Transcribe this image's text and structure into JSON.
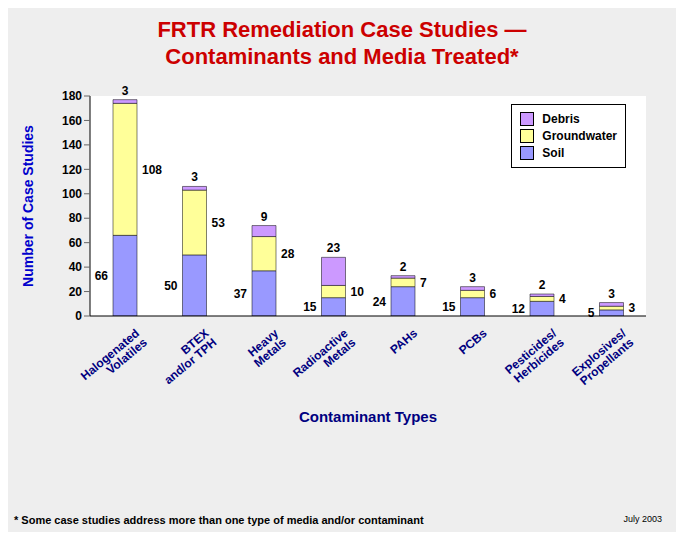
{
  "chart_data": {
    "type": "bar",
    "title": "FRTR Remediation Case Studies — Contaminants and Media Treated*",
    "x_label": "Contaminant Types",
    "y_label": "Number of Case Studies",
    "footnote": "* Some case studies address more than one type of media and/or contaminant",
    "date": "July 2003",
    "categories": [
      "Halogenated Volatiles",
      "BTEX and/or TPH",
      "Heavy Metals",
      "Radioactive Metals",
      "PAHs",
      "PCBs",
      "Pesticides/ Herbicides",
      "Explosives/ Propellants"
    ],
    "series": [
      {
        "name": "Soil",
        "color": "#9999ff",
        "values": [
          66,
          50,
          37,
          15,
          24,
          15,
          12,
          5
        ]
      },
      {
        "name": "Groundwater",
        "color": "#ffff99",
        "values": [
          108,
          53,
          28,
          10,
          7,
          6,
          4,
          3
        ]
      },
      {
        "name": "Debris",
        "color": "#cc99ff",
        "values": [
          3,
          3,
          9,
          23,
          2,
          3,
          2,
          3
        ]
      }
    ],
    "stacked": true,
    "data_labels": true,
    "legend": "top-right",
    "grid": false,
    "ylim": [
      0,
      180
    ],
    "yticks": [
      0,
      20,
      40,
      60,
      80,
      100,
      120,
      140,
      160,
      180
    ]
  }
}
